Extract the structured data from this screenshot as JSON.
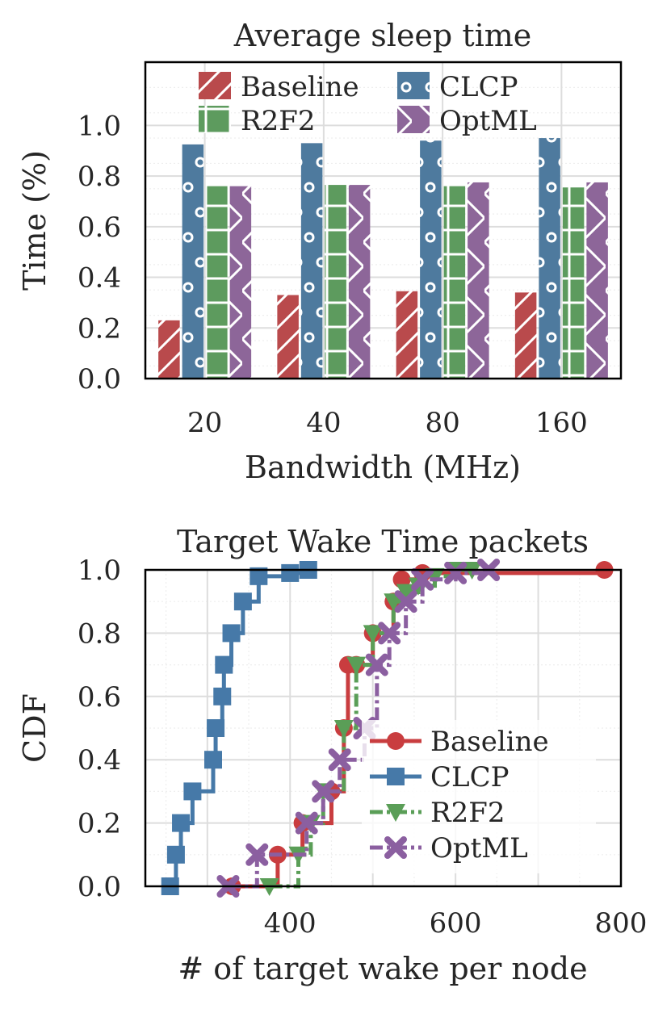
{
  "chart_data": [
    {
      "type": "bar",
      "title": "Average sleep time",
      "xlabel": "Bandwidth (MHz)",
      "ylabel": "Time (%)",
      "ylim": [
        0,
        1.25
      ],
      "yticks": [
        "0.0",
        "0.2",
        "0.4",
        "0.6",
        "0.8",
        "1.0"
      ],
      "grid": true,
      "legend_position": "top",
      "categories": [
        "20",
        "40",
        "80",
        "160"
      ],
      "series": [
        {
          "name": "Baseline",
          "color": "#b94a4c",
          "hatch": "slash",
          "values": [
            0.23,
            0.33,
            0.345,
            0.34
          ]
        },
        {
          "name": "CLCP",
          "color": "#4e7a9e",
          "hatch": "circles",
          "values": [
            0.925,
            0.93,
            0.94,
            0.95
          ]
        },
        {
          "name": "R2F2",
          "color": "#5d9b5e",
          "hatch": "grid",
          "values": [
            0.76,
            0.765,
            0.76,
            0.755
          ]
        },
        {
          "name": "OptML",
          "color": "#8d6699",
          "hatch": "cross",
          "values": [
            0.76,
            0.765,
            0.775,
            0.775
          ]
        }
      ]
    },
    {
      "type": "line",
      "title": "Target Wake Time packets",
      "xlabel": "# of target wake per node",
      "ylabel": "CDF",
      "xlim": [
        225,
        800
      ],
      "ylim": [
        0,
        1.0
      ],
      "xticks": [
        "400",
        "600",
        "800"
      ],
      "yticks": [
        "0.0",
        "0.2",
        "0.4",
        "0.6",
        "0.8",
        "1.0"
      ],
      "grid": true,
      "legend_position": "lower-right",
      "series": [
        {
          "name": "Baseline",
          "color": "#c93d3f",
          "marker": "circle",
          "line": "solid",
          "x": [
            330,
            385,
            415,
            450,
            465,
            470,
            480,
            500,
            525,
            535,
            560,
            780
          ],
          "y": [
            0.0,
            0.1,
            0.2,
            0.3,
            0.5,
            0.7,
            0.7,
            0.8,
            0.9,
            0.97,
            0.99,
            1.0
          ]
        },
        {
          "name": "CLCP",
          "color": "#4679a8",
          "marker": "square",
          "line": "solid",
          "x": [
            255,
            262,
            268,
            282,
            307,
            310,
            318,
            320,
            329,
            343,
            362,
            400,
            422
          ],
          "y": [
            0.0,
            0.1,
            0.2,
            0.3,
            0.4,
            0.5,
            0.6,
            0.7,
            0.8,
            0.9,
            0.98,
            0.99,
            1.0
          ]
        },
        {
          "name": "R2F2",
          "color": "#5a9e57",
          "marker": "triangle",
          "line": "dashdot",
          "x": [
            375,
            410,
            425,
            440,
            465,
            480,
            500,
            525,
            540,
            555,
            575,
            600,
            620
          ],
          "y": [
            0.0,
            0.1,
            0.2,
            0.3,
            0.5,
            0.7,
            0.8,
            0.9,
            0.93,
            0.95,
            0.98,
            1.0,
            1.0
          ]
        },
        {
          "name": "OptML",
          "color": "#8b5fa0",
          "marker": "cross",
          "line": "dashdot",
          "x": [
            325,
            360,
            420,
            440,
            460,
            490,
            505,
            520,
            540,
            560,
            600,
            640
          ],
          "y": [
            0.0,
            0.1,
            0.2,
            0.3,
            0.4,
            0.5,
            0.7,
            0.8,
            0.9,
            0.97,
            0.99,
            1.0
          ]
        }
      ]
    }
  ]
}
